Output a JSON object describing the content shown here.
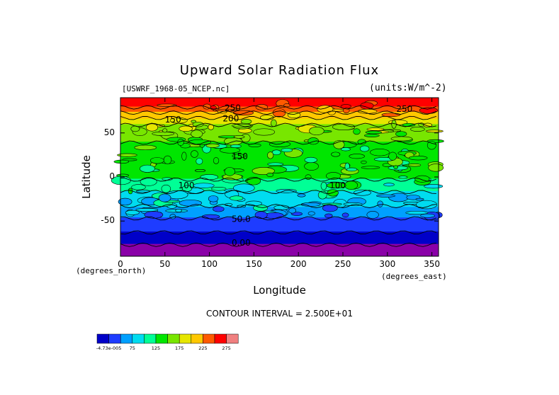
{
  "chart_data": {
    "type": "heatmap",
    "title": "Upward Solar Radiation Flux",
    "file_label": "[USWRF_1968-05_NCEP.nc]",
    "units_label": "(units:W/m^-2)",
    "xlabel": "Longitude",
    "ylabel": "Latitude",
    "x_unit_label": "(degrees_east)",
    "y_unit_label": "(degrees_north)",
    "xlim": [
      0,
      357.5
    ],
    "ylim": [
      -90,
      90
    ],
    "x_ticks": [
      0,
      50,
      100,
      150,
      200,
      250,
      300,
      350
    ],
    "y_ticks": [
      -50,
      0,
      50
    ],
    "contour_interval_text": "CONTOUR INTERVAL = 2.500E+01",
    "contour_labels": [
      {
        "text": "250",
        "lon": 117,
        "lat": 75
      },
      {
        "text": "250",
        "lon": 310,
        "lat": 74
      },
      {
        "text": "150",
        "lon": 50,
        "lat": 62
      },
      {
        "text": "200",
        "lon": 115,
        "lat": 63
      },
      {
        "text": "150",
        "lon": 125,
        "lat": 20
      },
      {
        "text": "100",
        "lon": 65,
        "lat": -13
      },
      {
        "text": "100",
        "lon": 235,
        "lat": -13
      },
      {
        "text": "50.0",
        "lon": 125,
        "lat": -51
      },
      {
        "text": "0.00",
        "lon": 125,
        "lat": -78
      }
    ],
    "lat_profile": [
      {
        "lat": 90,
        "value": 262
      },
      {
        "lat": 80,
        "value": 250
      },
      {
        "lat": 70,
        "value": 212
      },
      {
        "lat": 60,
        "value": 175
      },
      {
        "lat": 50,
        "value": 160
      },
      {
        "lat": 40,
        "value": 150
      },
      {
        "lat": 30,
        "value": 145
      },
      {
        "lat": 20,
        "value": 140
      },
      {
        "lat": 10,
        "value": 135
      },
      {
        "lat": 0,
        "value": 130
      },
      {
        "lat": -10,
        "value": 110
      },
      {
        "lat": -20,
        "value": 95
      },
      {
        "lat": -30,
        "value": 80
      },
      {
        "lat": -40,
        "value": 65
      },
      {
        "lat": -50,
        "value": 40
      },
      {
        "lat": -60,
        "value": 30
      },
      {
        "lat": -70,
        "value": 10
      },
      {
        "lat": -80,
        "value": -5
      },
      {
        "lat": -90,
        "value": -5
      }
    ],
    "colorbar": {
      "levels_labels": [
        "-4.73e-005",
        "75",
        "125",
        "175",
        "225",
        "275"
      ],
      "colors": [
        "#8a00a8",
        "#0000c8",
        "#1e3cff",
        "#00a0ff",
        "#00dcf0",
        "#00ff96",
        "#00e600",
        "#78e600",
        "#e6e600",
        "#ffc800",
        "#ff5a00",
        "#ff0000",
        "#f08080"
      ]
    }
  }
}
